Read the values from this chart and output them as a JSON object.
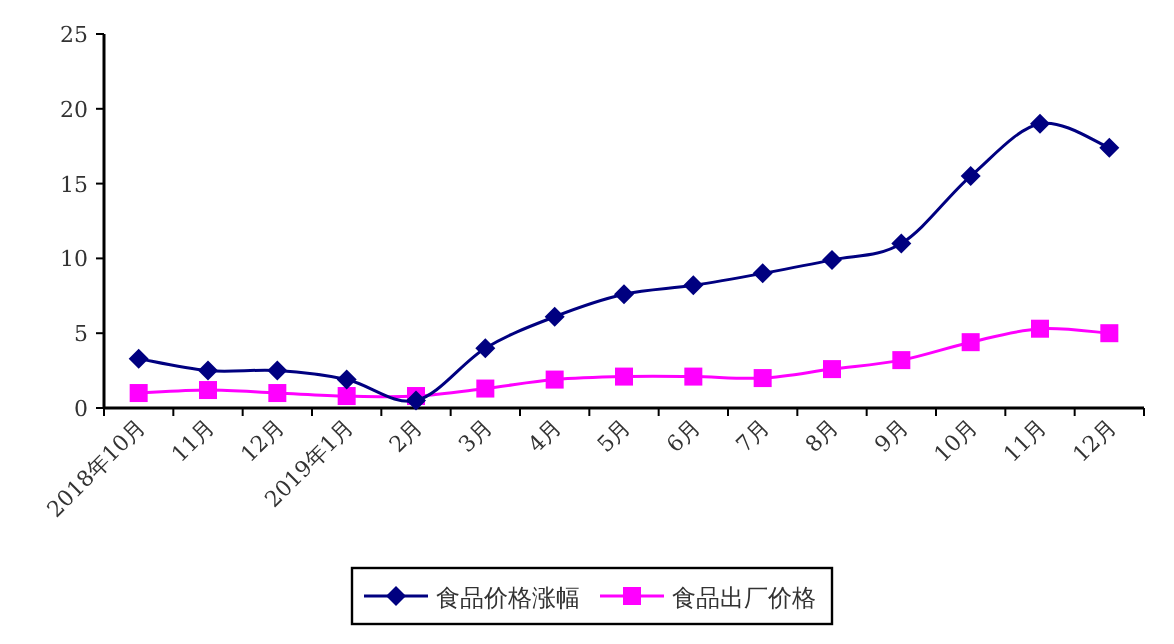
{
  "chart_data": {
    "type": "line",
    "categories": [
      "2018年10月",
      "11月",
      "12月",
      "2019年1月",
      "2月",
      "3月",
      "4月",
      "5月",
      "6月",
      "7月",
      "8月",
      "9月",
      "10月",
      "11月",
      "12月"
    ],
    "series": [
      {
        "name": "食品价格涨幅",
        "color": "#000080",
        "marker": "diamond",
        "values": [
          3.3,
          2.5,
          2.5,
          1.9,
          0.5,
          4.0,
          6.1,
          7.6,
          8.2,
          9.0,
          9.9,
          11.0,
          15.5,
          19.0,
          17.4
        ]
      },
      {
        "name": "食品出厂价格",
        "color": "#ff00ff",
        "marker": "square",
        "values": [
          1.0,
          1.2,
          1.0,
          0.8,
          0.8,
          1.3,
          1.9,
          2.1,
          2.1,
          2.0,
          2.6,
          3.2,
          4.4,
          5.3,
          5.0
        ]
      }
    ],
    "ylim": [
      0,
      25
    ],
    "yticks": [
      0,
      5,
      10,
      15,
      20,
      25
    ],
    "grid": false,
    "legend": "bottom"
  }
}
